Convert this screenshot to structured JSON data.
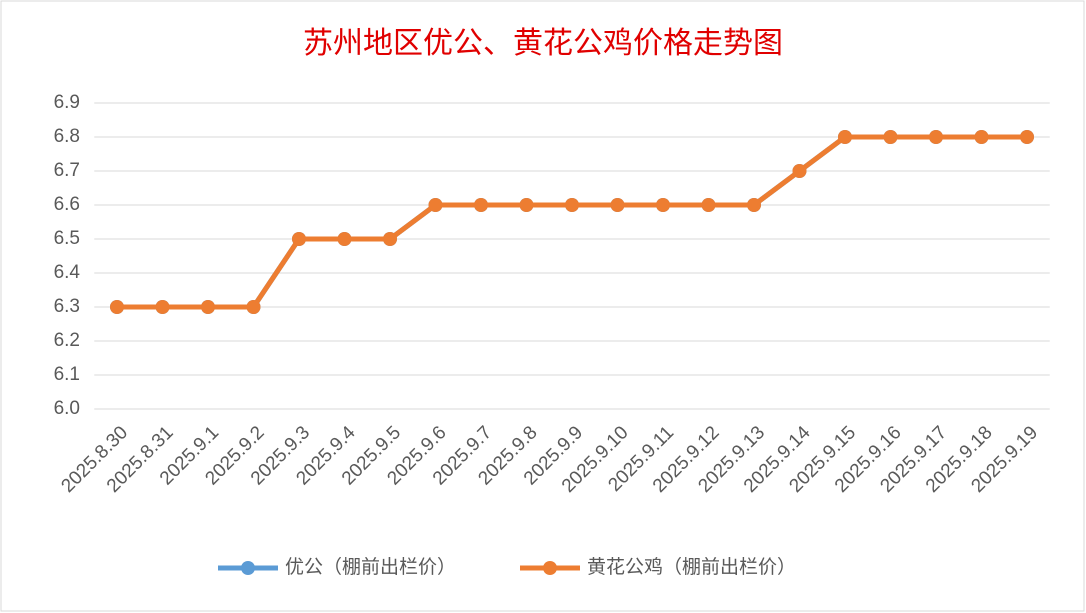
{
  "chart_data": {
    "type": "line",
    "title": "苏州地区优公、黄花公鸡价格走势图",
    "categories": [
      "2025.8.30",
      "2025.8.31",
      "2025.9.1",
      "2025.9.2",
      "2025.9.3",
      "2025.9.4",
      "2025.9.5",
      "2025.9.6",
      "2025.9.7",
      "2025.9.8",
      "2025.9.9",
      "2025.9.10",
      "2025.9.11",
      "2025.9.12",
      "2025.9.13",
      "2025.9.14",
      "2025.9.15",
      "2025.9.16",
      "2025.9.17",
      "2025.9.18",
      "2025.9.19"
    ],
    "series": [
      {
        "name": "优公（棚前出栏价）",
        "color": "#5b9bd5",
        "values": [
          6.3,
          6.3,
          6.3,
          6.3,
          6.5,
          6.5,
          6.5,
          6.6,
          6.6,
          6.6,
          6.6,
          6.6,
          6.6,
          6.6,
          6.6,
          6.7,
          6.8,
          6.8,
          6.8,
          6.8,
          6.8
        ]
      },
      {
        "name": "黄花公鸡（棚前出栏价）",
        "color": "#ed7d31",
        "values": [
          6.3,
          6.3,
          6.3,
          6.3,
          6.5,
          6.5,
          6.5,
          6.6,
          6.6,
          6.6,
          6.6,
          6.6,
          6.6,
          6.6,
          6.6,
          6.7,
          6.8,
          6.8,
          6.8,
          6.8,
          6.8
        ]
      }
    ],
    "ylim": [
      6,
      6.9
    ],
    "yticks": [
      {
        "value": 6,
        "label": "6.0"
      },
      6.1,
      6.2,
      6.3,
      6.4,
      6.5,
      6.6,
      6.7,
      6.8,
      6.9
    ],
    "grid": true,
    "legend": "bottom"
  }
}
